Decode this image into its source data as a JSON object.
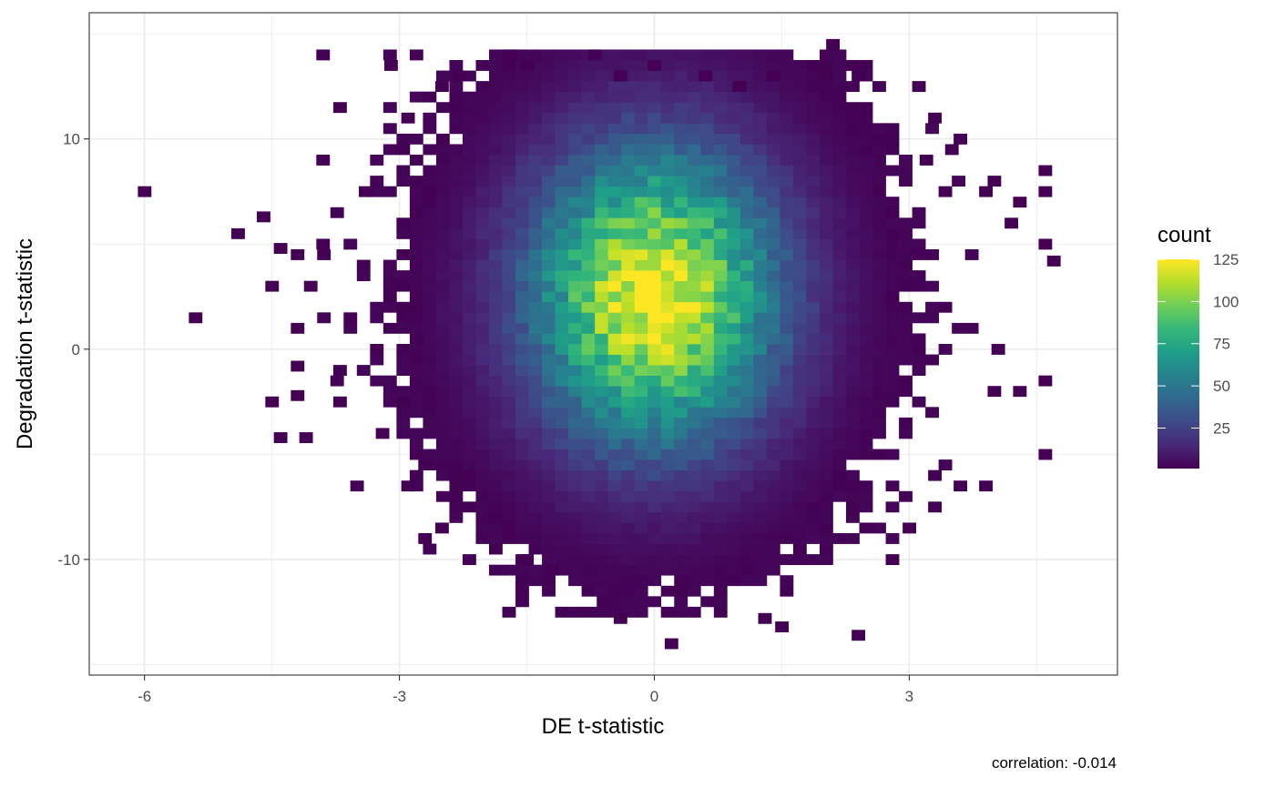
{
  "chart_data": {
    "type": "heatmap",
    "subtype": "2d-bin-count",
    "xlabel": "DE t-statistic",
    "ylabel": "Degradation t-statistic",
    "caption": "correlation: -0.014",
    "xlim": [
      -6.65,
      5.45
    ],
    "ylim": [
      -15.5,
      16.0
    ],
    "x_ticks": [
      -6,
      -3,
      0,
      3
    ],
    "x_tick_labels": [
      "-6",
      "-3",
      "0",
      "3"
    ],
    "y_ticks": [
      -10,
      0,
      10
    ],
    "y_tick_labels": [
      "-10",
      "0",
      "10"
    ],
    "x_minor_breaks": [
      -4.5,
      -1.5,
      1.5,
      4.5
    ],
    "y_minor_breaks": [
      -15,
      -5,
      5,
      15
    ],
    "grid": true,
    "theme": "bw",
    "bin_width": {
      "x": 0.1556,
      "y": 0.5
    },
    "fill_scale": {
      "name": "viridis",
      "title": "count",
      "min": 1,
      "max": 125,
      "breaks": [
        25,
        50,
        75,
        100,
        125
      ],
      "break_labels": [
        "25",
        "50",
        "75",
        "100",
        "125"
      ],
      "colors": [
        "#440154",
        "#482878",
        "#3e4a89",
        "#31688e",
        "#26828e",
        "#1f9e89",
        "#35b779",
        "#6ece58",
        "#b5de2b",
        "#fde725"
      ]
    },
    "density_model": {
      "description": "approx. bivariate normal bin counts",
      "center_x": 0.0,
      "center_y": 2.5,
      "sd_x": 1.0,
      "sd_y": 4.8,
      "peak_count": 125,
      "correlation": -0.014
    },
    "outlier_bins": [
      [
        -6.0,
        7.5
      ],
      [
        -5.4,
        1.5
      ],
      [
        -4.9,
        5.5
      ],
      [
        -4.6,
        6.3
      ],
      [
        -4.4,
        -4.2
      ],
      [
        -3.9,
        14.0
      ],
      [
        -4.1,
        -4.2
      ],
      [
        -3.7,
        11.5
      ],
      [
        -3.1,
        13.5
      ],
      [
        -3.4,
        7.5
      ],
      [
        3.9,
        7.5
      ],
      [
        4.3,
        7.0
      ],
      [
        4.6,
        8.5
      ],
      [
        4.6,
        7.5
      ],
      [
        4.6,
        5.0
      ],
      [
        4.7,
        4.2
      ],
      [
        4.6,
        -1.5
      ],
      [
        4.6,
        -5.0
      ],
      [
        4.0,
        -2.0
      ],
      [
        4.3,
        -2.0
      ],
      [
        2.1,
        14.5
      ],
      [
        1.9,
        13.5
      ],
      [
        2.4,
        13.0
      ],
      [
        3.3,
        11.0
      ],
      [
        3.6,
        10.0
      ],
      [
        -0.6,
        -12.0
      ],
      [
        -0.4,
        -12.8
      ],
      [
        1.3,
        -12.8
      ],
      [
        1.5,
        -13.2
      ],
      [
        2.4,
        -13.6
      ],
      [
        0.2,
        -14.0
      ],
      [
        -1.5,
        -10.0
      ],
      [
        -1.2,
        -10.5
      ],
      [
        -2.5,
        -8.5
      ],
      [
        -2.7,
        -9.0
      ],
      [
        3.0,
        -8.5
      ],
      [
        3.3,
        -7.5
      ],
      [
        3.6,
        -6.5
      ],
      [
        3.9,
        -6.5
      ],
      [
        3.3,
        -6.0
      ],
      [
        -2.9,
        -6.5
      ],
      [
        -3.5,
        -6.5
      ],
      [
        -2.7,
        -5.5
      ],
      [
        -3.2,
        -4.0
      ],
      [
        -4.5,
        -2.5
      ],
      [
        -4.2,
        -2.2
      ],
      [
        -3.7,
        -2.5
      ],
      [
        -4.2,
        -0.8
      ],
      [
        -3.7,
        -1.0
      ],
      [
        -4.2,
        1.0
      ],
      [
        -4.5,
        3.0
      ],
      [
        -4.2,
        4.5
      ],
      [
        -3.9,
        5.0
      ],
      [
        -4.4,
        4.8
      ],
      [
        -3.9,
        9.0
      ],
      [
        -2.9,
        11.0
      ],
      [
        -2.5,
        12.5
      ],
      [
        -1.7,
        14.0
      ],
      [
        -0.7,
        14.0
      ],
      [
        0.0,
        13.5
      ],
      [
        0.6,
        13.0
      ],
      [
        1.4,
        13.0
      ],
      [
        -0.4,
        13.0
      ],
      [
        -2.3,
        13.0
      ],
      [
        -1.5,
        13.5
      ],
      [
        1.0,
        12.5
      ],
      [
        3.2,
        9.0
      ],
      [
        3.5,
        9.5
      ],
      [
        4.0,
        8.0
      ],
      [
        4.2,
        6.0
      ]
    ]
  }
}
